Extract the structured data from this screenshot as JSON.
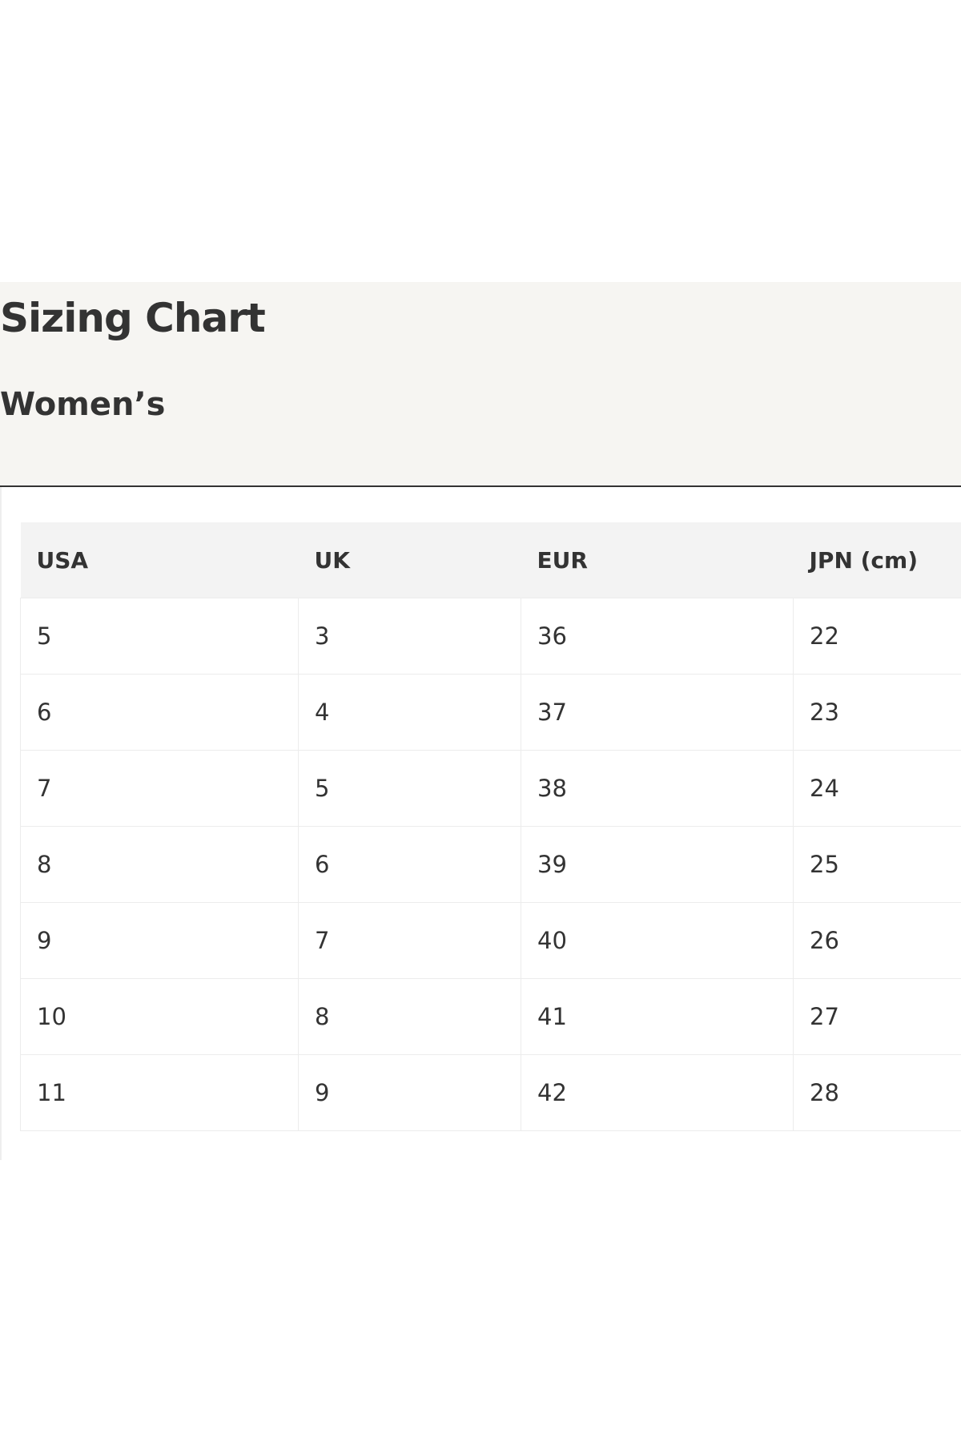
{
  "header": {
    "title": "Sizing Chart",
    "subtitle": "Women’s"
  },
  "table": {
    "columns": [
      "USA",
      "UK",
      "EUR",
      "JPN (cm)"
    ],
    "rows": [
      [
        5,
        3,
        36,
        22
      ],
      [
        6,
        4,
        37,
        23
      ],
      [
        7,
        5,
        38,
        24
      ],
      [
        8,
        6,
        39,
        25
      ],
      [
        9,
        7,
        40,
        26
      ],
      [
        10,
        8,
        41,
        27
      ],
      [
        11,
        9,
        42,
        28
      ]
    ]
  }
}
